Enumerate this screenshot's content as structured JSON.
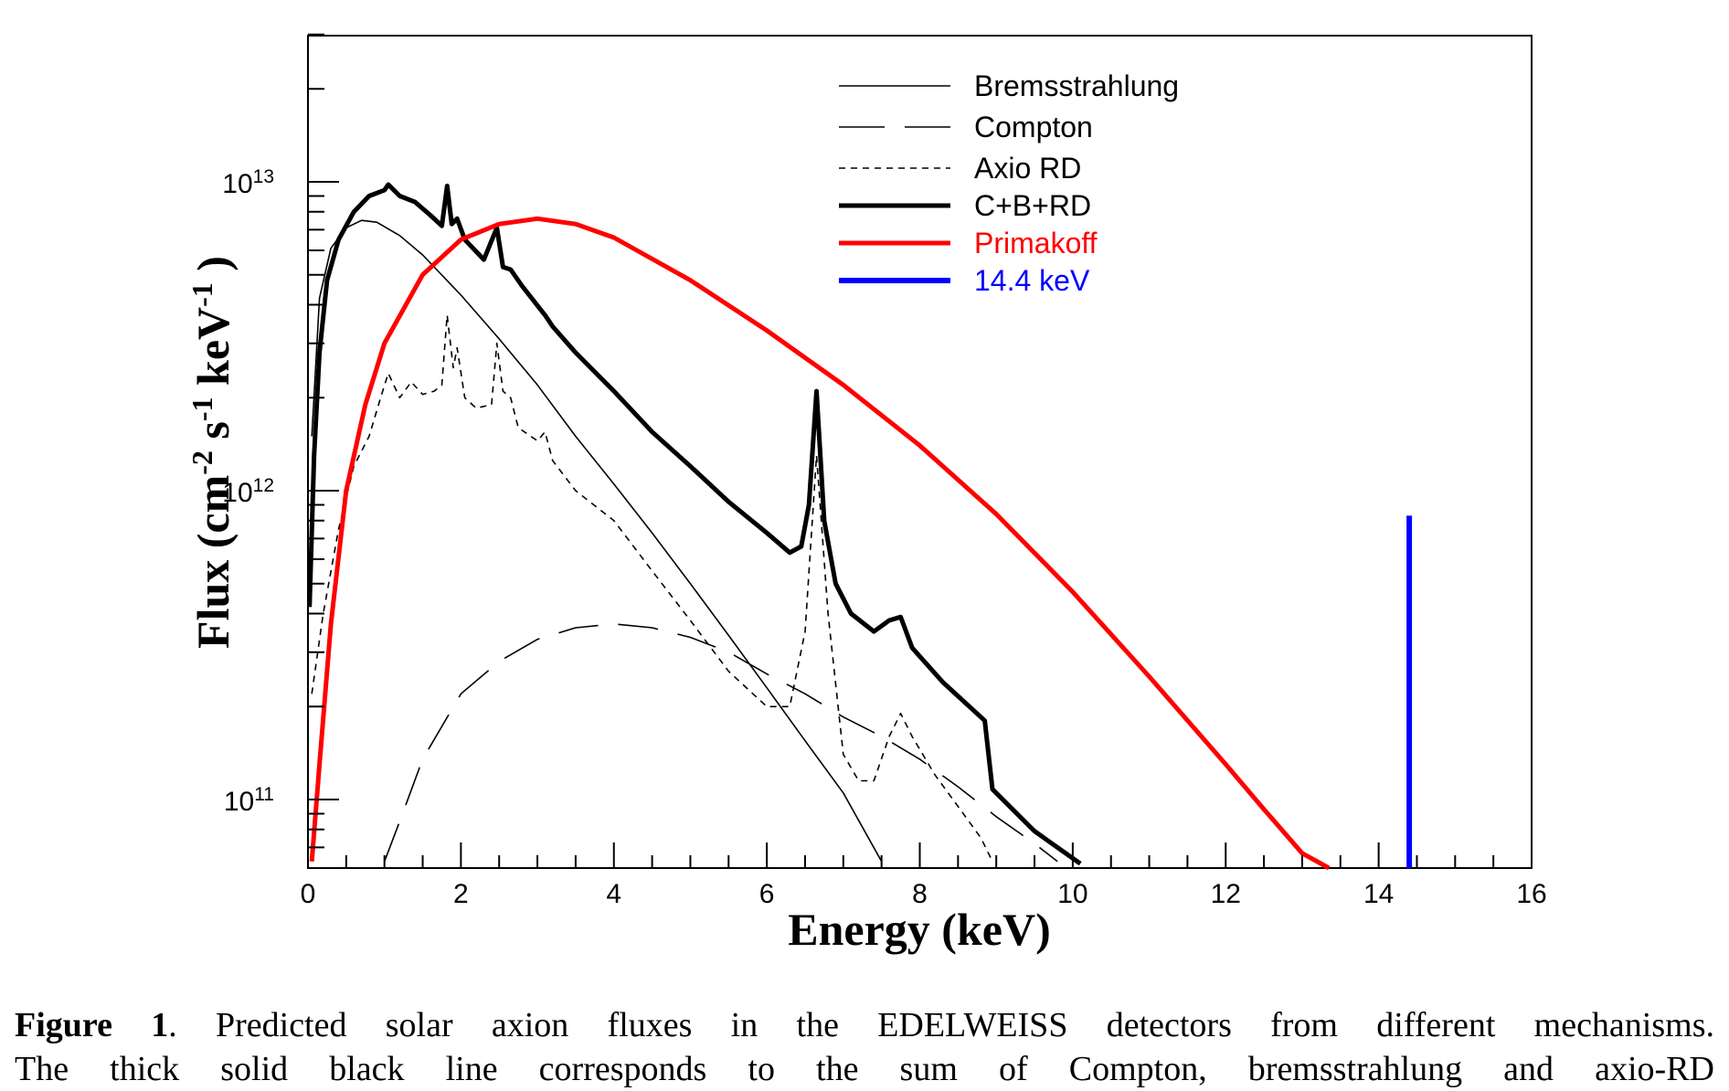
{
  "chart_data": {
    "type": "line",
    "title": "",
    "xlabel": "Energy (keV)",
    "ylabel": "Flux  (cm-2 s-1 keV-1 )",
    "ylabel_parts": {
      "a": "Flux  (cm",
      "b": "-2",
      "c": " s",
      "d": "-1",
      "e": " keV",
      "f": "-1",
      "g": " )"
    },
    "xlim": [
      0,
      16
    ],
    "ylim": [
      60000000000.0,
      30000000000000.0
    ],
    "yscale": "log",
    "x_ticks": [
      "0",
      "2",
      "4",
      "6",
      "8",
      "10",
      "12",
      "14",
      "16"
    ],
    "y_ticks": [
      {
        "value": 100000000000.0,
        "base": "10",
        "exp": "11"
      },
      {
        "value": 1000000000000.0,
        "base": "10",
        "exp": "12"
      },
      {
        "value": 10000000000000.0,
        "base": "10",
        "exp": "13"
      }
    ],
    "grid": false,
    "legend_position": "top-right",
    "series": [
      {
        "name": "Bremsstrahlung",
        "color": "#000000",
        "style": "solid",
        "width": 1.6,
        "points": [
          [
            0.05,
            1500000000000.0
          ],
          [
            0.15,
            4200000000000.0
          ],
          [
            0.3,
            6100000000000.0
          ],
          [
            0.5,
            7100000000000.0
          ],
          [
            0.7,
            7500000000000.0
          ],
          [
            0.9,
            7400000000000.0
          ],
          [
            1.2,
            6700000000000.0
          ],
          [
            1.5,
            5800000000000.0
          ],
          [
            2.0,
            4300000000000.0
          ],
          [
            2.5,
            3100000000000.0
          ],
          [
            3.0,
            2200000000000.0
          ],
          [
            3.5,
            1500000000000.0
          ],
          [
            4.0,
            1050000000000.0
          ],
          [
            4.5,
            730000000000.0
          ],
          [
            5.0,
            500000000000.0
          ],
          [
            5.5,
            340000000000.0
          ],
          [
            6.0,
            230000000000.0
          ],
          [
            6.5,
            155000000000.0
          ],
          [
            7.0,
            105000000000.0
          ],
          [
            7.5,
            63000000000.0
          ]
        ]
      },
      {
        "name": "Compton",
        "color": "#000000",
        "style": "dash",
        "width": 1.6,
        "points": [
          [
            1.0,
            63000000000.0
          ],
          [
            1.2,
            85000000000.0
          ],
          [
            1.5,
            135000000000.0
          ],
          [
            2.0,
            220000000000.0
          ],
          [
            2.5,
            280000000000.0
          ],
          [
            3.0,
            330000000000.0
          ],
          [
            3.5,
            360000000000.0
          ],
          [
            4.0,
            370000000000.0
          ],
          [
            4.5,
            360000000000.0
          ],
          [
            5.0,
            335000000000.0
          ],
          [
            5.5,
            300000000000.0
          ],
          [
            6.0,
            255000000000.0
          ],
          [
            6.5,
            220000000000.0
          ],
          [
            7.0,
            185000000000.0
          ],
          [
            7.5,
            160000000000.0
          ],
          [
            8.0,
            135000000000.0
          ],
          [
            8.5,
            110000000000.0
          ],
          [
            9.0,
            88000000000.0
          ],
          [
            9.5,
            72000000000.0
          ],
          [
            9.8,
            63000000000.0
          ]
        ]
      },
      {
        "name": "Axio RD",
        "color": "#000000",
        "style": "dot",
        "width": 1.6,
        "points": [
          [
            0.05,
            220000000000.0
          ],
          [
            0.2,
            400000000000.0
          ],
          [
            0.4,
            750000000000.0
          ],
          [
            0.6,
            1200000000000.0
          ],
          [
            0.8,
            1500000000000.0
          ],
          [
            0.95,
            2000000000000.0
          ],
          [
            1.05,
            2400000000000.0
          ],
          [
            1.2,
            2000000000000.0
          ],
          [
            1.35,
            2250000000000.0
          ],
          [
            1.5,
            2050000000000.0
          ],
          [
            1.65,
            2100000000000.0
          ],
          [
            1.75,
            2200000000000.0
          ],
          [
            1.82,
            3700000000000.0
          ],
          [
            1.9,
            2500000000000.0
          ],
          [
            1.95,
            2900000000000.0
          ],
          [
            2.05,
            2000000000000.0
          ],
          [
            2.2,
            1850000000000.0
          ],
          [
            2.4,
            1900000000000.0
          ],
          [
            2.47,
            3000000000000.0
          ],
          [
            2.55,
            2100000000000.0
          ],
          [
            2.65,
            2000000000000.0
          ],
          [
            2.75,
            1600000000000.0
          ],
          [
            3.0,
            1450000000000.0
          ],
          [
            3.1,
            1550000000000.0
          ],
          [
            3.2,
            1250000000000.0
          ],
          [
            3.5,
            1000000000000.0
          ],
          [
            4.0,
            800000000000.0
          ],
          [
            4.5,
            550000000000.0
          ],
          [
            5.0,
            380000000000.0
          ],
          [
            5.5,
            260000000000.0
          ],
          [
            6.0,
            200000000000.0
          ],
          [
            6.3,
            200000000000.0
          ],
          [
            6.5,
            350000000000.0
          ],
          [
            6.65,
            1300000000000.0
          ],
          [
            6.8,
            400000000000.0
          ],
          [
            7.0,
            140000000000.0
          ],
          [
            7.2,
            115000000000.0
          ],
          [
            7.4,
            115000000000.0
          ],
          [
            7.6,
            160000000000.0
          ],
          [
            7.75,
            190000000000.0
          ],
          [
            7.9,
            160000000000.0
          ],
          [
            8.2,
            120000000000.0
          ],
          [
            8.5,
            95000000000.0
          ],
          [
            8.8,
            75000000000.0
          ],
          [
            8.95,
            63000000000.0
          ]
        ]
      },
      {
        "name": "C+B+RD",
        "color": "#000000",
        "style": "solid",
        "width": 5,
        "points": [
          [
            0.02,
            420000000000.0
          ],
          [
            0.08,
            1300000000000.0
          ],
          [
            0.15,
            2800000000000.0
          ],
          [
            0.25,
            4800000000000.0
          ],
          [
            0.4,
            6500000000000.0
          ],
          [
            0.6,
            8000000000000.0
          ],
          [
            0.8,
            9000000000000.0
          ],
          [
            1.0,
            9400000000000.0
          ],
          [
            1.05,
            9800000000000.0
          ],
          [
            1.2,
            9000000000000.0
          ],
          [
            1.4,
            8600000000000.0
          ],
          [
            1.6,
            7800000000000.0
          ],
          [
            1.75,
            7200000000000.0
          ],
          [
            1.82,
            9700000000000.0
          ],
          [
            1.88,
            7300000000000.0
          ],
          [
            1.95,
            7600000000000.0
          ],
          [
            2.05,
            6500000000000.0
          ],
          [
            2.3,
            5600000000000.0
          ],
          [
            2.47,
            7100000000000.0
          ],
          [
            2.55,
            5300000000000.0
          ],
          [
            2.65,
            5200000000000.0
          ],
          [
            2.8,
            4600000000000.0
          ],
          [
            3.1,
            3700000000000.0
          ],
          [
            3.2,
            3400000000000.0
          ],
          [
            3.5,
            2800000000000.0
          ],
          [
            4.0,
            2100000000000.0
          ],
          [
            4.5,
            1550000000000.0
          ],
          [
            5.0,
            1200000000000.0
          ],
          [
            5.5,
            920000000000.0
          ],
          [
            6.0,
            730000000000.0
          ],
          [
            6.3,
            630000000000.0
          ],
          [
            6.45,
            660000000000.0
          ],
          [
            6.55,
            900000000000.0
          ],
          [
            6.65,
            2100000000000.0
          ],
          [
            6.75,
            800000000000.0
          ],
          [
            6.9,
            500000000000.0
          ],
          [
            7.1,
            400000000000.0
          ],
          [
            7.4,
            350000000000.0
          ],
          [
            7.6,
            380000000000.0
          ],
          [
            7.75,
            390000000000.0
          ],
          [
            7.9,
            310000000000.0
          ],
          [
            8.3,
            240000000000.0
          ],
          [
            8.85,
            180000000000.0
          ],
          [
            8.95,
            108000000000.0
          ],
          [
            9.5,
            79000000000.0
          ],
          [
            10.1,
            62000000000.0
          ]
        ]
      },
      {
        "name": "Primakoff",
        "color": "#ff0000",
        "style": "solid",
        "width": 5,
        "points": [
          [
            0.05,
            63000000000.0
          ],
          [
            0.15,
            130000000000.0
          ],
          [
            0.3,
            370000000000.0
          ],
          [
            0.5,
            1000000000000.0
          ],
          [
            0.75,
            1900000000000.0
          ],
          [
            1.0,
            3000000000000.0
          ],
          [
            1.5,
            5000000000000.0
          ],
          [
            2.0,
            6500000000000.0
          ],
          [
            2.5,
            7300000000000.0
          ],
          [
            3.0,
            7600000000000.0
          ],
          [
            3.5,
            7300000000000.0
          ],
          [
            4.0,
            6600000000000.0
          ],
          [
            5.0,
            4800000000000.0
          ],
          [
            6.0,
            3300000000000.0
          ],
          [
            7.0,
            2200000000000.0
          ],
          [
            8.0,
            1400000000000.0
          ],
          [
            9.0,
            840000000000.0
          ],
          [
            10.0,
            470000000000.0
          ],
          [
            11.0,
            250000000000.0
          ],
          [
            12.0,
            130000000000.0
          ],
          [
            12.5,
            93000000000.0
          ],
          [
            13.0,
            67000000000.0
          ],
          [
            13.35,
            60000000000.0
          ]
        ]
      },
      {
        "name": "14.4 keV",
        "color": "#0000ff",
        "style": "solid",
        "width": 6,
        "points": [
          [
            14.4,
            830000000000.0
          ],
          [
            14.4,
            60000000000.0
          ]
        ]
      }
    ]
  },
  "caption": {
    "label": "Figure 1",
    "line1": ".  Predicted solar axion fluxes in the EDELWEISS detectors from different mechanisms.",
    "line2": "The thick solid black line corresponds to the sum of Compton, bremsstrahlung and axio-RD"
  }
}
